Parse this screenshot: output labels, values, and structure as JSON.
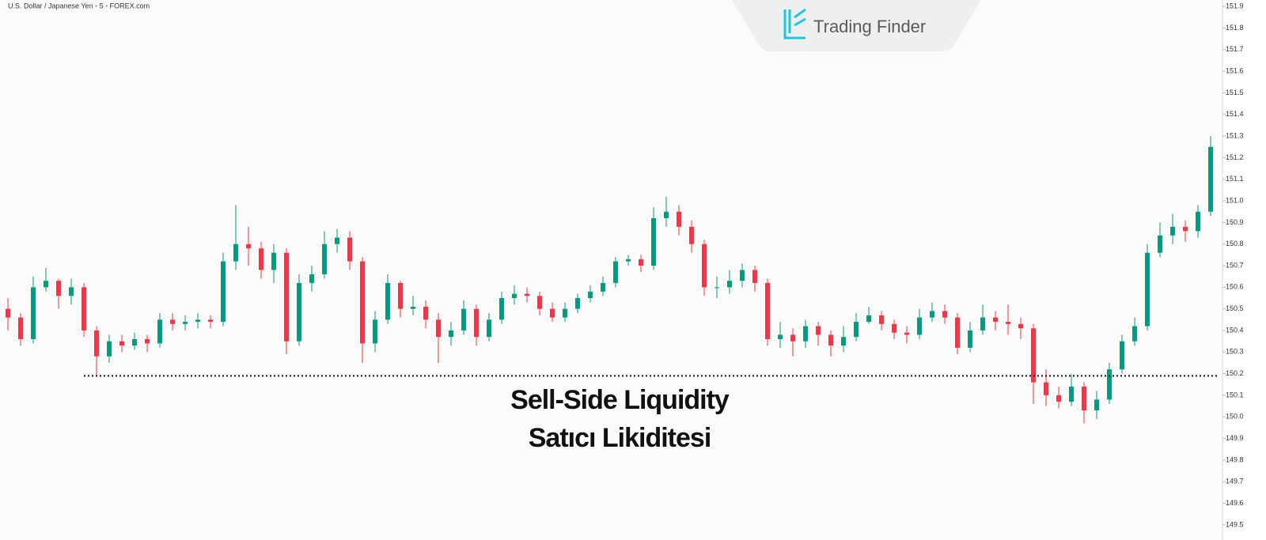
{
  "logo": "Trading Finder",
  "chart_data": {
    "type": "candlestick",
    "title": "U.S. Dollar / Japanese Yen - 5 - FOREX.com",
    "annotations": [
      "Sell-Side Liquidity",
      "Satıcı Likiditesi"
    ],
    "up_color": "#089981",
    "down_color": "#f23645",
    "level": 150.19,
    "ylim": [
      149.43,
      151.93
    ],
    "yticks": [
      149.5,
      149.6,
      149.7,
      149.8,
      149.9,
      {
        "value": 150,
        "label": "150.0"
      },
      150.1,
      150.2,
      150.3,
      150.4,
      150.5,
      150.6,
      150.7,
      150.8,
      150.9,
      {
        "value": 151,
        "label": "151.0"
      },
      151.1,
      151.2,
      151.3,
      151.4,
      151.5,
      151.6,
      151.7,
      151.8,
      151.9
    ],
    "open": [
      150.5,
      150.46,
      150.36,
      150.6,
      150.63,
      150.56,
      150.6,
      150.4,
      150.28,
      150.35,
      150.33,
      150.36,
      150.34,
      150.45,
      150.43,
      150.44,
      150.45,
      150.44,
      150.72,
      150.8,
      150.78,
      150.68,
      150.76,
      150.35,
      150.62,
      150.66,
      150.8,
      150.83,
      150.72,
      150.34,
      150.45,
      150.62,
      150.5,
      150.51,
      150.45,
      150.37,
      150.4,
      150.5,
      150.37,
      150.45,
      150.55,
      150.57,
      150.56,
      150.5,
      150.46,
      150.5,
      150.55,
      150.58,
      150.62,
      150.72,
      150.73,
      150.7,
      150.92,
      150.95,
      150.88,
      150.8,
      150.6,
      150.6,
      150.63,
      150.68,
      150.62,
      150.36,
      150.38,
      150.35,
      150.42,
      150.38,
      150.33,
      150.37,
      150.44,
      150.47,
      150.43,
      150.39,
      150.38,
      150.46,
      150.49,
      150.46,
      150.32,
      150.4,
      150.46,
      150.44,
      150.43,
      150.41,
      150.16,
      150.1,
      150.07,
      150.14,
      150.03,
      150.08,
      150.22,
      150.35,
      150.42,
      150.76,
      150.84,
      150.88,
      150.86,
      150.95
    ],
    "high": [
      150.55,
      150.48,
      150.65,
      150.69,
      150.64,
      150.64,
      150.62,
      150.42,
      150.38,
      150.38,
      150.39,
      150.38,
      150.48,
      150.48,
      150.47,
      150.48,
      150.47,
      150.76,
      150.98,
      150.88,
      150.81,
      150.8,
      150.78,
      150.66,
      150.7,
      150.86,
      150.87,
      150.86,
      150.74,
      150.49,
      150.66,
      150.63,
      150.56,
      150.54,
      150.48,
      150.44,
      150.54,
      150.52,
      150.48,
      150.58,
      150.61,
      150.6,
      150.58,
      150.53,
      150.53,
      150.57,
      150.61,
      150.65,
      150.74,
      150.75,
      150.75,
      150.97,
      151.02,
      150.98,
      150.91,
      150.82,
      150.65,
      150.68,
      150.71,
      150.7,
      150.64,
      150.44,
      150.41,
      150.45,
      150.44,
      150.4,
      150.42,
      150.48,
      150.51,
      150.49,
      150.45,
      150.42,
      150.5,
      150.53,
      150.52,
      150.48,
      150.44,
      150.52,
      150.49,
      150.52,
      150.46,
      150.43,
      150.22,
      150.14,
      150.2,
      150.16,
      150.12,
      150.25,
      150.38,
      150.46,
      150.8,
      150.9,
      150.94,
      150.91,
      150.98,
      151.3
    ],
    "low": [
      150.4,
      150.33,
      150.34,
      150.58,
      150.5,
      150.52,
      150.37,
      150.19,
      150.25,
      150.3,
      150.31,
      150.3,
      150.32,
      150.4,
      150.4,
      150.41,
      150.41,
      150.42,
      150.68,
      150.7,
      150.64,
      150.62,
      150.29,
      150.33,
      150.58,
      150.64,
      150.76,
      150.68,
      150.25,
      150.3,
      150.43,
      150.46,
      150.47,
      150.41,
      150.25,
      150.33,
      150.38,
      150.33,
      150.35,
      150.43,
      150.52,
      150.53,
      150.47,
      150.44,
      150.44,
      150.48,
      150.53,
      150.56,
      150.6,
      150.7,
      150.67,
      150.68,
      150.88,
      150.84,
      150.76,
      150.56,
      150.55,
      150.57,
      150.6,
      150.58,
      150.33,
      150.32,
      150.28,
      150.32,
      150.33,
      150.28,
      150.3,
      150.35,
      150.43,
      150.4,
      150.36,
      150.34,
      150.36,
      150.44,
      150.43,
      150.29,
      150.3,
      150.38,
      150.4,
      150.38,
      150.36,
      150.06,
      150.05,
      150.04,
      150.05,
      149.97,
      149.99,
      150.06,
      150.2,
      150.33,
      150.4,
      150.74,
      150.8,
      150.81,
      150.83,
      150.93
    ],
    "close": [
      150.46,
      150.36,
      150.6,
      150.63,
      150.56,
      150.6,
      150.4,
      150.28,
      150.35,
      150.33,
      150.36,
      150.34,
      150.45,
      150.43,
      150.44,
      150.45,
      150.44,
      150.72,
      150.8,
      150.78,
      150.68,
      150.76,
      150.35,
      150.62,
      150.66,
      150.8,
      150.83,
      150.72,
      150.34,
      150.45,
      150.62,
      150.5,
      150.51,
      150.45,
      150.37,
      150.4,
      150.5,
      150.37,
      150.45,
      150.55,
      150.57,
      150.56,
      150.5,
      150.46,
      150.5,
      150.55,
      150.58,
      150.62,
      150.72,
      150.73,
      150.7,
      150.92,
      150.95,
      150.88,
      150.8,
      150.6,
      150.6,
      150.63,
      150.68,
      150.62,
      150.36,
      150.38,
      150.35,
      150.42,
      150.38,
      150.33,
      150.37,
      150.44,
      150.47,
      150.43,
      150.39,
      150.38,
      150.46,
      150.49,
      150.46,
      150.32,
      150.4,
      150.46,
      150.44,
      150.43,
      150.41,
      150.16,
      150.1,
      150.07,
      150.14,
      150.03,
      150.08,
      150.22,
      150.35,
      150.42,
      150.76,
      150.84,
      150.88,
      150.86,
      150.95,
      151.25
    ]
  }
}
